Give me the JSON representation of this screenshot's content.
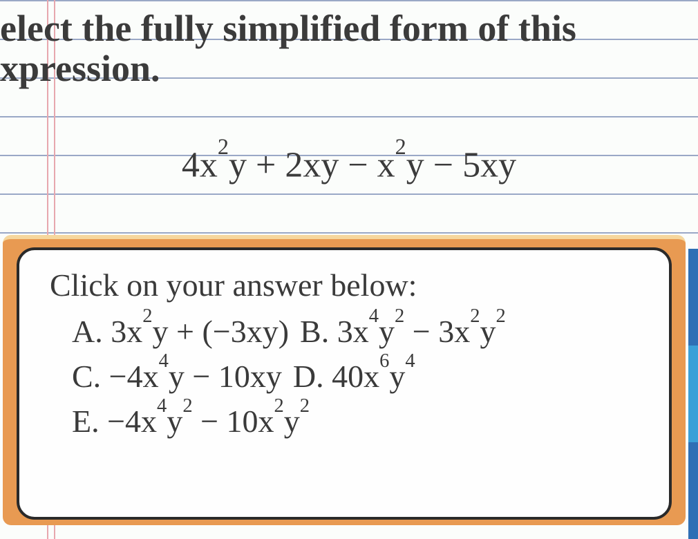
{
  "paper": {
    "background_color": "#fbfdfb",
    "hlines_color": "#9aa8c6",
    "hlines_y": [
      0,
      56,
      112,
      168,
      224,
      280,
      336
    ],
    "margin_vlines_color": "#e7a7ae",
    "margin_vlines_x": [
      68,
      78
    ]
  },
  "question": {
    "text_html": "elect the fully simplified form of this<br>xpression.",
    "fontsize": 54,
    "font_weight": "600",
    "color": "#3b3b3b"
  },
  "expression": {
    "text_html": "4x<sup>2</sup>y + 2xy − x<sup>2</sup>y − 5xy",
    "fontsize": 52,
    "color": "#3b3b3b"
  },
  "answer_box": {
    "frame_color": "#e89a52",
    "frame_highlight": "#f6d79e",
    "panel_bg": "#fefefe",
    "panel_border": "#2a2a2a",
    "prompt": "Click on your answer below:",
    "prompt_fontsize": 46,
    "choice_fontsize": 46,
    "choices": {
      "A": "3x<sup>2</sup>y + (−3xy)",
      "B": "3x<sup>4</sup>y<sup>2</sup> − 3x<sup>2</sup>y<sup>2</sup>",
      "C": "−4x<sup>4</sup>y − 10xy",
      "D": "40x<sup>6</sup>y<sup>4</sup>",
      "E": "−4x<sup>4</sup>y<sup>2</sup> − 10x<sup>2</sup>y<sup>2</sup>"
    }
  },
  "edges": {
    "colors": [
      "#2e6fb5",
      "#3aa0d8",
      "#2e6fb5"
    ],
    "y": [
      360,
      500,
      640
    ],
    "h": [
      140,
      140,
      140
    ]
  }
}
